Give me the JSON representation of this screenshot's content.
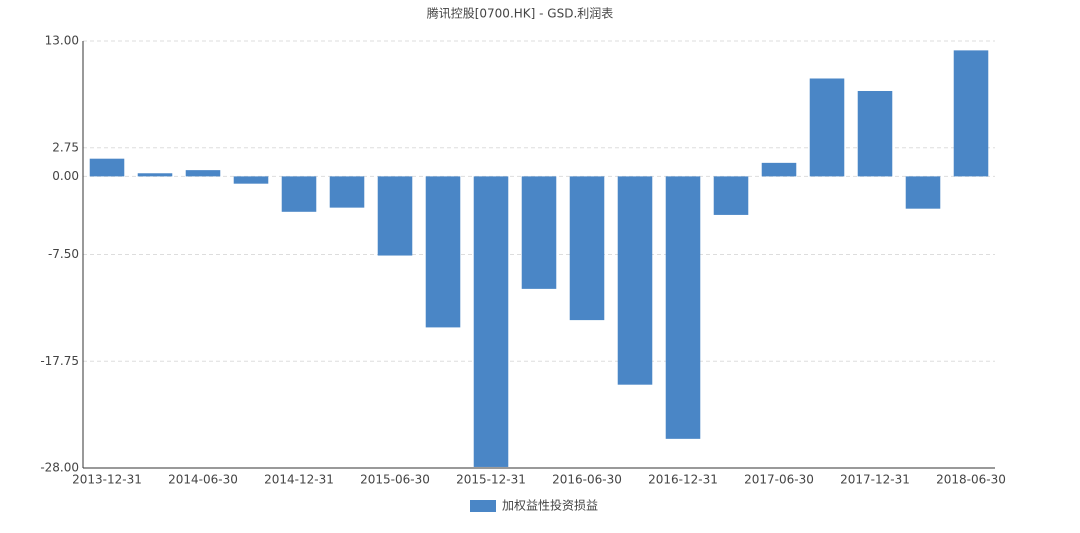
{
  "chart_data": {
    "type": "bar",
    "title": "腾讯控股[0700.HK] - GSD.利润表",
    "categories": [
      "2013-12-31",
      null,
      "2014-06-30",
      null,
      "2014-12-31",
      null,
      "2015-06-30",
      null,
      "2015-12-31",
      null,
      "2016-06-30",
      null,
      "2016-12-31",
      null,
      "2017-06-30",
      null,
      "2017-12-31",
      null,
      "2018-06-30"
    ],
    "series": [
      {
        "name": "加权益性投资损益",
        "color": "#4a86c6",
        "values": [
          1.7,
          0.3,
          0.6,
          -0.7,
          -3.4,
          -3.0,
          -7.6,
          -14.5,
          -27.9,
          -10.8,
          -13.8,
          -20.0,
          -25.2,
          -3.7,
          1.3,
          9.4,
          8.2,
          -3.1,
          12.1
        ]
      }
    ],
    "ylim": [
      -28,
      13
    ],
    "yticks": [
      {
        "value": 13,
        "label": "13.00"
      },
      {
        "value": 2.75,
        "label": "2.75"
      },
      {
        "value": 0,
        "label": "0.00"
      },
      {
        "value": -7.5,
        "label": "-7.50"
      },
      {
        "value": -17.75,
        "label": "-17.75"
      },
      {
        "value": -28,
        "label": "-28.00"
      }
    ],
    "grid": true,
    "legend": "bottom"
  }
}
